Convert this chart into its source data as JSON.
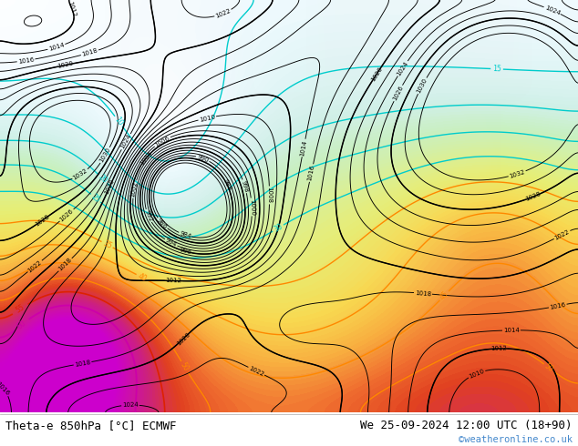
{
  "title_left": "Theta-e 850hPa [°C] ECMWF",
  "title_right": "We 25-09-2024 12:00 UTC (18+90)",
  "copyright": "©weatheronline.co.uk",
  "figsize": [
    6.34,
    4.9
  ],
  "dpi": 100,
  "bg_color": "#ffffff",
  "title_fontsize": 9,
  "copyright_color": "#4488cc",
  "map_bg": "#e8e8e8",
  "theta_cold_color": "#00cccc",
  "theta_warm_color": "#ff8800",
  "theta_hot_color": "#cc0055",
  "theta_magenta_color": "#cc00aa",
  "pressure_color": "#000000",
  "fill_colors": [
    "#e0f0ff",
    "#c8e8ff",
    "#b0e0ff",
    "#90d8f8",
    "#70c8f0",
    "#50b8e8",
    "#30a8e0",
    "#10a0d8",
    "#a0f0c0",
    "#80e8a0",
    "#60e080",
    "#40d860",
    "#20d040",
    "#f0f080",
    "#e8e060",
    "#e0c840",
    "#d8b020",
    "#d09800",
    "#f0a060",
    "#e88040",
    "#e06020",
    "#d84000",
    "#d02000",
    "#e060a0",
    "#d04080",
    "#c02060",
    "#b00040",
    "#a00020"
  ]
}
